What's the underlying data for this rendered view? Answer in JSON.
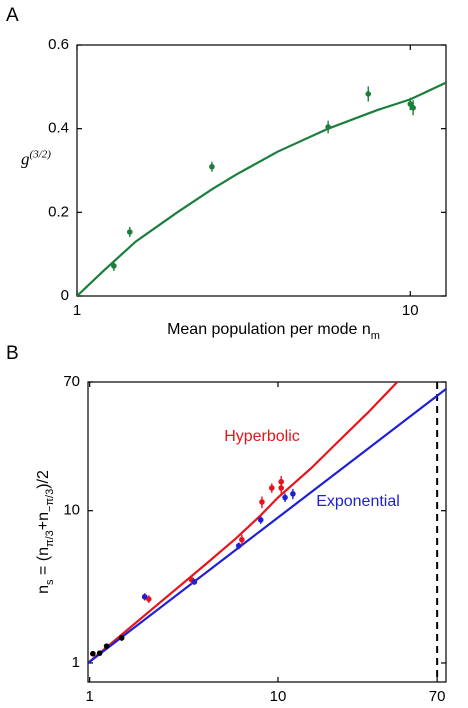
{
  "chart_data": [
    {
      "type": "scatter",
      "panel": "A",
      "xlabel": [
        {
          "text": "Mean population per mode n"
        },
        {
          "text": "m",
          "sub": true
        }
      ],
      "ylabel": [
        {
          "text": "g"
        },
        {
          "text": "(3/2)",
          "sup": true
        }
      ],
      "xscale": "log",
      "yscale": "linear",
      "xlim": [
        1,
        12.8
      ],
      "ylim": [
        0,
        0.6
      ],
      "xticks": [
        1,
        10
      ],
      "yticks": [
        0,
        0.2,
        0.4,
        0.6
      ],
      "series": [
        {
          "color": "#1a7f3c",
          "x": [
            1.29,
            1.44,
            2.54,
            5.67,
            7.48,
            10.0,
            10.2
          ],
          "values": [
            0.072,
            0.153,
            0.309,
            0.404,
            0.483,
            0.459,
            0.45
          ],
          "errors": [
            0.012,
            0.012,
            0.012,
            0.015,
            0.018,
            0.015,
            0.018
          ]
        }
      ],
      "curves": [
        {
          "color": "#1a7f3c",
          "x": [
            1,
            1.2,
            1.5,
            2,
            2.54,
            3,
            4,
            5.67,
            8,
            10,
            12.8
          ],
          "values": [
            0,
            0.06,
            0.13,
            0.2,
            0.255,
            0.29,
            0.345,
            0.4,
            0.445,
            0.47,
            0.51
          ]
        }
      ]
    },
    {
      "type": "scatter",
      "panel": "B",
      "xlabel": [
        {
          "text": "Mean population per mode n"
        },
        {
          "text": "m",
          "sub": true
        }
      ],
      "ylabel": [
        {
          "text": "n"
        },
        {
          "text": "s",
          "sub": true
        },
        {
          "text": " = (n"
        },
        {
          "text": "π/3",
          "sub": true
        },
        {
          "text": "+n"
        },
        {
          "text": "−π/3",
          "sub": true
        },
        {
          "text": ")/2"
        }
      ],
      "xscale": "log",
      "yscale": "log",
      "xlim": [
        0.98,
        78
      ],
      "ylim": [
        0.75,
        70
      ],
      "xticks": [
        1,
        10,
        70
      ],
      "yticks": [
        1,
        10,
        70
      ],
      "vline": 70,
      "series": [
        {
          "color": "#000000",
          "x": [
            1.04,
            1.13,
            1.23,
            1.48
          ],
          "values": [
            1.15,
            1.16,
            1.29,
            1.46
          ],
          "errors": [
            0.04,
            0.04,
            0.05,
            0.06
          ]
        },
        {
          "color": "#e8141b",
          "x": [
            1.96,
            2.06,
            3.48,
            6.43,
            8.22,
            9.27,
            10.4,
            10.4
          ],
          "values": [
            2.72,
            2.63,
            3.51,
            6.45,
            11.4,
            14.1,
            15.5,
            14.1
          ],
          "errors": [
            0.15,
            0.15,
            0.2,
            0.5,
            1.0,
            1.0,
            1.4,
            1.2
          ]
        },
        {
          "color": "#1f1fd6",
          "x": [
            1.96,
            3.6,
            6.19,
            8.1,
            10.9,
            12.0
          ],
          "values": [
            2.72,
            3.41,
            5.88,
            8.7,
            12.2,
            12.9
          ],
          "errors": [
            0.12,
            0.15,
            0.3,
            0.5,
            0.8,
            1.0
          ]
        }
      ],
      "curves": [
        {
          "name": "Hyperbolic",
          "color": "#e8141b",
          "x": [
            0.98,
            2,
            4,
            6,
            8,
            10,
            15,
            20,
            30,
            43
          ],
          "values": [
            1.0,
            2.1,
            4.3,
            6.6,
            9.2,
            12.2,
            19,
            27,
            44,
            70
          ]
        },
        {
          "name": "Exponential",
          "color": "#1f1fd6",
          "x": [
            0.98,
            78
          ],
          "values": [
            1.0,
            63
          ]
        }
      ]
    }
  ]
}
